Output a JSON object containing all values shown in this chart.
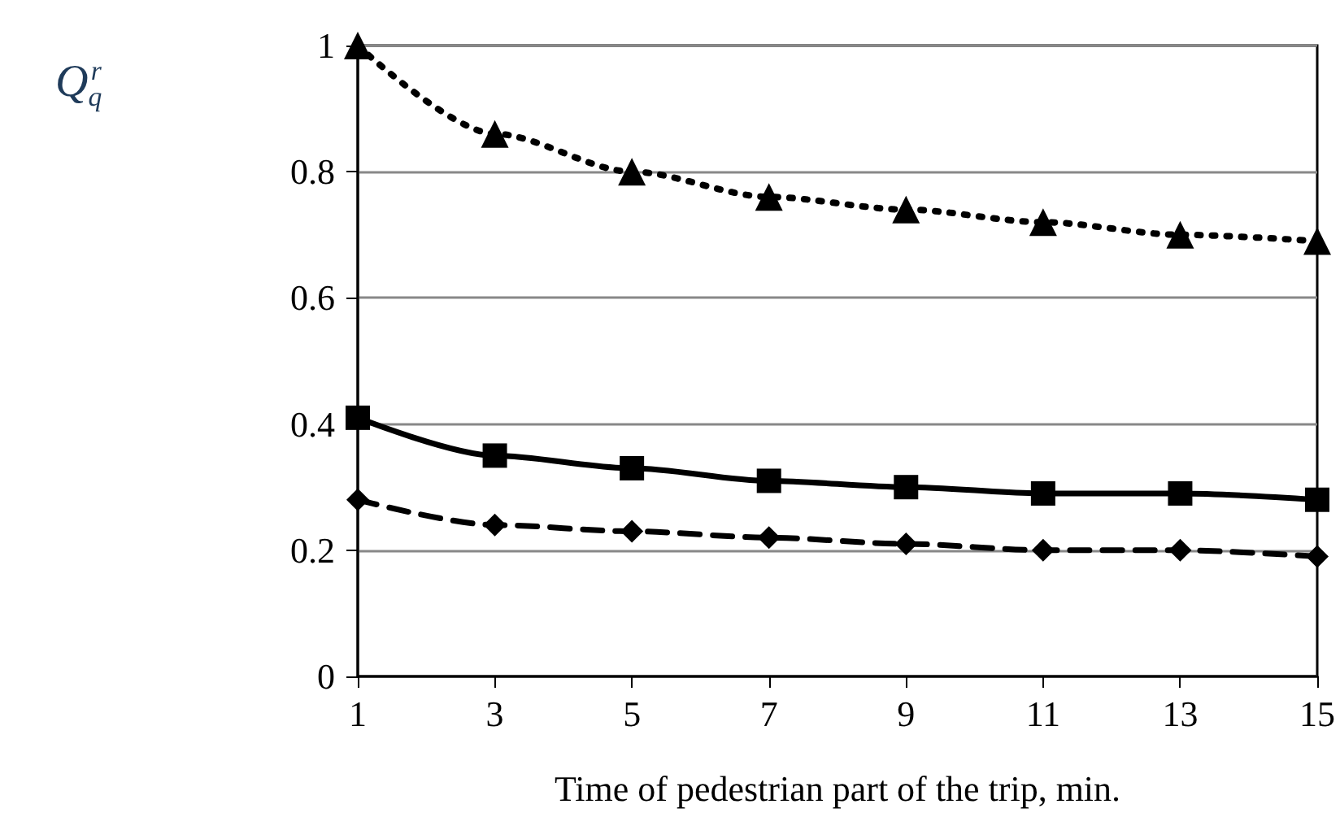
{
  "chart_data": {
    "type": "line",
    "xlabel": "Time of pedestrian part of the trip, min.",
    "ylabel": "Q$_{q}$$^{r}$",
    "x": [
      1,
      3,
      5,
      7,
      9,
      11,
      13,
      15
    ],
    "series": [
      {
        "color": "#000000",
        "marker": "triangle",
        "line_style": "dotted",
        "values": [
          1.0,
          0.86,
          0.8,
          0.76,
          0.74,
          0.72,
          0.7,
          0.69
        ]
      },
      {
        "color": "#000000",
        "marker": "square",
        "line_style": "solid",
        "values": [
          0.41,
          0.35,
          0.33,
          0.31,
          0.3,
          0.29,
          0.29,
          0.28
        ]
      },
      {
        "color": "#000000",
        "marker": "diamond",
        "line_style": "dashed",
        "values": [
          0.28,
          0.24,
          0.23,
          0.22,
          0.21,
          0.2,
          0.2,
          0.19
        ]
      }
    ],
    "xlim": [
      1,
      15
    ],
    "xticks": [
      1,
      3,
      5,
      7,
      9,
      11,
      13,
      15
    ],
    "ylim": [
      0,
      1
    ],
    "yticks": [
      0,
      0.2,
      0.4,
      0.6,
      0.8,
      1
    ],
    "grid": "y"
  }
}
